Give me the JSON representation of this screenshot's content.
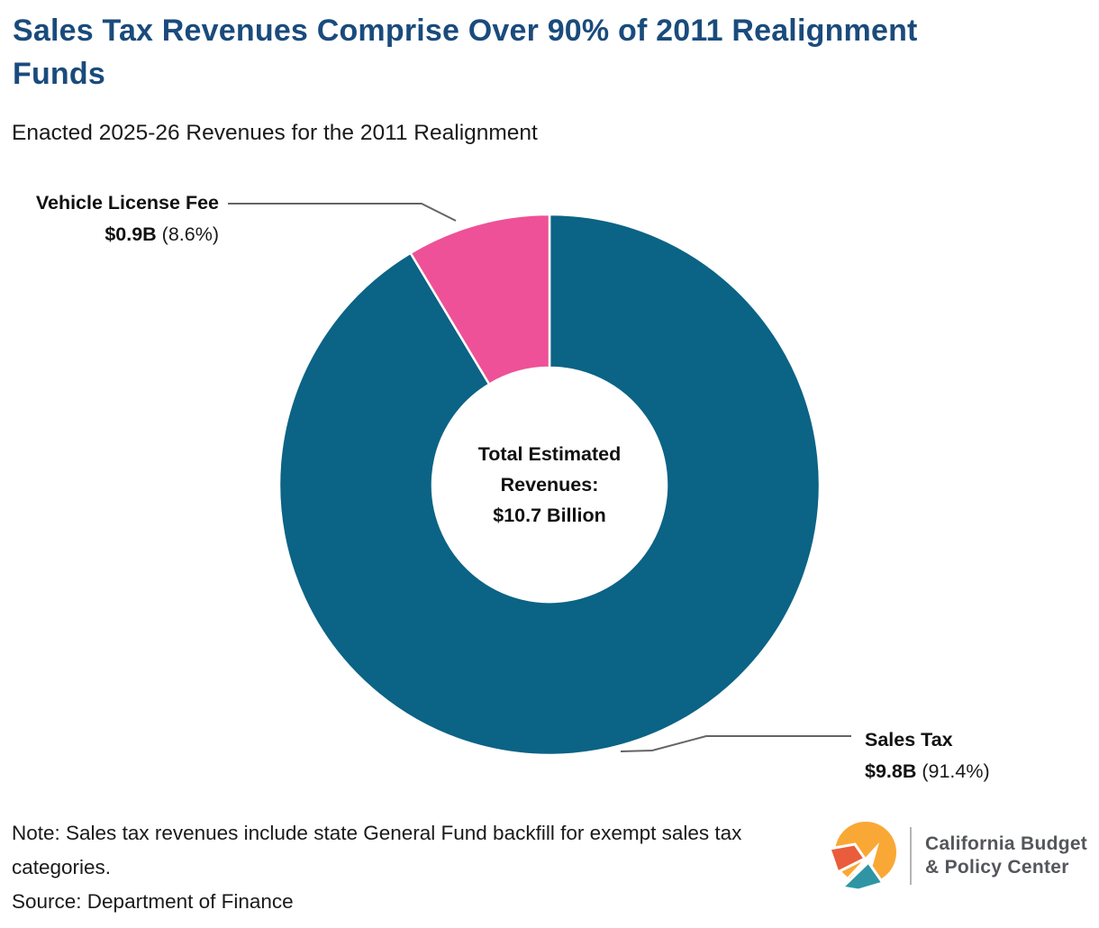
{
  "header": {
    "title": "Sales Tax Revenues Comprise Over 90% of 2011 Realignment Funds",
    "subtitle": "Enacted 2025-26 Revenues for the 2011 Realignment"
  },
  "chart_data": {
    "type": "pie",
    "subtype": "donut",
    "title": "Sales Tax Revenues Comprise Over 90% of 2011 Realignment Funds",
    "total_estimated_revenues_billions": 10.7,
    "start_angle_deg": 0,
    "direction": "clockwise",
    "slices": [
      {
        "label": "Sales Tax",
        "value_display": "$9.8B",
        "value_billions": 9.8,
        "percent": 91.4,
        "percent_display": "(91.4%)",
        "color": "#0b6385"
      },
      {
        "label": "Vehicle License Fee",
        "value_display": "$0.9B",
        "value_billions": 0.9,
        "percent": 8.6,
        "percent_display": "(8.6%)",
        "color": "#ee5197"
      }
    ],
    "center_label": {
      "line1": "Total Estimated",
      "line2": "Revenues:",
      "line3": "$10.7 Billion"
    },
    "legend_position": "none",
    "labels_style": "callout-leader-lines"
  },
  "footer": {
    "note": "Note: Sales tax revenues include state General Fund backfill for exempt sales tax categories.",
    "source": "Source: Department of Finance"
  },
  "logo": {
    "org_line1": "California Budget",
    "org_line2": "& Policy Center",
    "colors": {
      "yellow": "#f9a835",
      "orange": "#e95d3c",
      "teal": "#2f95a4",
      "text_gray": "#54565a"
    }
  },
  "theme": {
    "title_color": "#1a4b7c",
    "body_text_color": "#1a1a1a",
    "leader_line_color": "#646464",
    "background": "#ffffff"
  }
}
